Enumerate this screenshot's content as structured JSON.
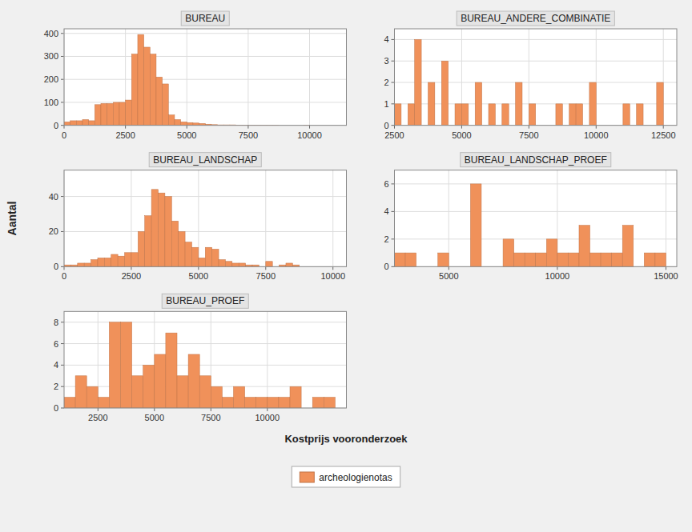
{
  "chart_data": [
    {
      "type": "histogram",
      "title": "BUREAU",
      "xlabel": "Kostprijs vooronderzoek",
      "ylabel": "Aantal",
      "legend": "bottom",
      "grid": true,
      "bins": [
        0,
        250,
        500,
        750,
        1000,
        1250,
        1500,
        1750,
        2000,
        2250,
        2500,
        2750,
        3000,
        3250,
        3500,
        3750,
        4000,
        4250,
        4500,
        4750,
        5000,
        5250,
        5500,
        5750,
        6000,
        6250,
        6500,
        6750,
        7000,
        7250,
        7500,
        7750,
        8000,
        8250,
        8500,
        8750,
        9000,
        9250,
        9500,
        9750,
        10000,
        10250,
        10500,
        10750,
        11000,
        11250,
        11500
      ],
      "series": [
        {
          "name": "archeologienotas",
          "color": "#f0915a",
          "values": [
            15,
            20,
            20,
            25,
            20,
            90,
            95,
            95,
            100,
            100,
            110,
            310,
            395,
            340,
            310,
            210,
            180,
            45,
            25,
            15,
            12,
            10,
            8,
            5,
            3,
            2,
            2,
            2,
            1,
            1,
            1,
            1,
            1,
            1,
            1,
            0,
            0,
            0,
            0,
            1,
            0,
            0,
            0,
            0,
            0,
            0
          ]
        }
      ],
      "xlim": [
        0,
        11500
      ],
      "ylim": [
        0,
        420
      ],
      "yticks": [
        0,
        100,
        200,
        300,
        400
      ],
      "xticks": [
        0,
        2500,
        5000,
        7500,
        10000
      ]
    },
    {
      "type": "histogram",
      "title": "BUREAU_ANDERE_COMBINATIE",
      "grid": true,
      "bins": [
        2500,
        2750,
        3000,
        3250,
        3500,
        3750,
        4000,
        4250,
        4500,
        4750,
        5000,
        5250,
        5500,
        5750,
        6000,
        6250,
        6500,
        6750,
        7000,
        7250,
        7500,
        7750,
        8000,
        8250,
        8500,
        8750,
        9000,
        9250,
        9500,
        9750,
        10000,
        10250,
        10500,
        10750,
        11000,
        11250,
        11500,
        11750,
        12000,
        12250,
        12500,
        12750
      ],
      "series": [
        {
          "name": "archeologienotas",
          "color": "#f0915a",
          "values": [
            1,
            0,
            1,
            4,
            0,
            2,
            0,
            3,
            0,
            1,
            1,
            0,
            2,
            0,
            1,
            0,
            1,
            0,
            2,
            0,
            1,
            0,
            0,
            0,
            1,
            0,
            1,
            1,
            0,
            2,
            0,
            0,
            0,
            0,
            1,
            0,
            1,
            0,
            0,
            2,
            0
          ]
        }
      ],
      "xlim": [
        2500,
        13000
      ],
      "ylim": [
        0,
        4.5
      ],
      "yticks": [
        0,
        1,
        2,
        3,
        4
      ],
      "xticks": [
        2500,
        5000,
        7500,
        10000,
        12500
      ]
    },
    {
      "type": "histogram",
      "title": "BUREAU_LANDSCHAP",
      "grid": true,
      "bins": [
        0,
        250,
        500,
        750,
        1000,
        1250,
        1500,
        1750,
        2000,
        2250,
        2500,
        2750,
        3000,
        3250,
        3500,
        3750,
        4000,
        4250,
        4500,
        4750,
        5000,
        5250,
        5500,
        5750,
        6000,
        6250,
        6500,
        6750,
        7000,
        7250,
        7500,
        7750,
        8000,
        8250,
        8500,
        8750,
        9000,
        9250,
        9500,
        9750,
        10000,
        10250
      ],
      "series": [
        {
          "name": "archeologienotas",
          "color": "#f0915a",
          "values": [
            1,
            1,
            2,
            2,
            4,
            5,
            5,
            7,
            6,
            8,
            8,
            20,
            29,
            44,
            42,
            40,
            26,
            20,
            14,
            11,
            5,
            11,
            10,
            4,
            3,
            2,
            2,
            1,
            1,
            0,
            3,
            0,
            1,
            2,
            1,
            0,
            0,
            0,
            0,
            0,
            0
          ]
        }
      ],
      "xlim": [
        0,
        10500
      ],
      "ylim": [
        0,
        55
      ],
      "yticks": [
        0,
        20,
        40
      ],
      "xticks": [
        0,
        2500,
        5000,
        7500,
        10000
      ]
    },
    {
      "type": "histogram",
      "title": "BUREAU_LANDSCHAP_PROEF",
      "grid": true,
      "bins": [
        2500,
        3000,
        3500,
        4000,
        4500,
        5000,
        5500,
        6000,
        6500,
        7000,
        7500,
        8000,
        8500,
        9000,
        9500,
        10000,
        10500,
        11000,
        11500,
        12000,
        12500,
        13000,
        13500,
        14000,
        14500,
        15000
      ],
      "series": [
        {
          "name": "archeologienotas",
          "color": "#f0915a",
          "values": [
            1,
            1,
            0,
            0,
            1,
            0,
            0,
            6,
            0,
            0,
            2,
            1,
            1,
            1,
            2,
            1,
            1,
            3,
            1,
            1,
            1,
            3,
            0,
            1,
            1
          ]
        }
      ],
      "xlim": [
        2500,
        15500
      ],
      "ylim": [
        0,
        7
      ],
      "yticks": [
        0,
        2,
        4,
        6
      ],
      "xticks": [
        5000,
        10000,
        15000
      ]
    },
    {
      "type": "histogram",
      "title": "BUREAU_PROEF",
      "grid": true,
      "bins": [
        1000,
        1500,
        2000,
        2500,
        3000,
        3500,
        4000,
        4500,
        5000,
        5500,
        6000,
        6500,
        7000,
        7500,
        8000,
        8500,
        9000,
        9500,
        10000,
        10500,
        11000,
        11500,
        12000,
        12500,
        13000
      ],
      "series": [
        {
          "name": "archeologienotas",
          "color": "#f0915a",
          "values": [
            1,
            3,
            2,
            1,
            8,
            8,
            3,
            4,
            5,
            7,
            3,
            5,
            3,
            2,
            1,
            2,
            1,
            1,
            1,
            1,
            2,
            0,
            1,
            1
          ]
        }
      ],
      "xlim": [
        1000,
        13500
      ],
      "ylim": [
        0,
        9
      ],
      "yticks": [
        0,
        2,
        4,
        6,
        8
      ],
      "xticks": [
        2500,
        5000,
        7500,
        10000
      ]
    }
  ]
}
